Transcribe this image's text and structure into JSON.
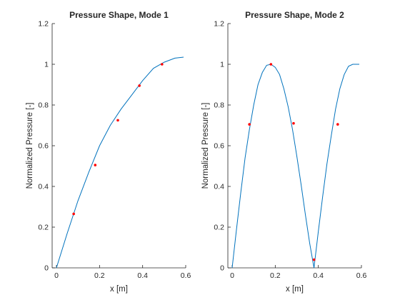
{
  "chart_data": [
    {
      "type": "line",
      "title": "Pressure Shape, Mode 1",
      "xlabel": "x [m]",
      "ylabel": "Normalized Pressure [-]",
      "xlim": [
        -0.02,
        0.6
      ],
      "ylim": [
        0,
        1.2
      ],
      "xticks": [
        "0",
        "0.2",
        "0.4",
        "0.6"
      ],
      "xtick_values": [
        0,
        0.2,
        0.4,
        0.6
      ],
      "yticks": [
        "0",
        "0.2",
        "0.4",
        "0.6",
        "0.8",
        "1",
        "1.2"
      ],
      "ytick_values": [
        0,
        0.2,
        0.4,
        0.6,
        0.8,
        1,
        1.2
      ],
      "grid": false,
      "series": [
        {
          "style": "line",
          "color": "#0072bd",
          "x": [
            0,
            0.05,
            0.1,
            0.15,
            0.2,
            0.25,
            0.3,
            0.35,
            0.4,
            0.45,
            0.5,
            0.55,
            0.59
          ],
          "y": [
            0,
            0.17,
            0.33,
            0.47,
            0.6,
            0.7,
            0.78,
            0.85,
            0.92,
            0.98,
            1.01,
            1.03,
            1.035
          ]
        },
        {
          "style": "markers",
          "color": "#ff0000",
          "x": [
            0.08,
            0.18,
            0.285,
            0.385,
            0.49
          ],
          "y": [
            0.265,
            0.505,
            0.725,
            0.895,
            1.0
          ]
        }
      ]
    },
    {
      "type": "line",
      "title": "Pressure Shape, Mode 2",
      "xlabel": "x [m]",
      "ylabel": "Normalized Pressure [-]",
      "xlim": [
        -0.02,
        0.6
      ],
      "ylim": [
        0,
        1.2
      ],
      "xticks": [
        "0",
        "0.2",
        "0.4",
        "0.6"
      ],
      "xtick_values": [
        0,
        0.2,
        0.4,
        0.6
      ],
      "yticks": [
        "0",
        "0.2",
        "0.4",
        "0.6",
        "0.8",
        "1",
        "1.2"
      ],
      "ytick_values": [
        0,
        0.2,
        0.4,
        0.6,
        0.8,
        1,
        1.2
      ],
      "grid": false,
      "series": [
        {
          "style": "line",
          "color": "#0072bd",
          "x": [
            0,
            0.02,
            0.04,
            0.06,
            0.08,
            0.1,
            0.12,
            0.14,
            0.16,
            0.18,
            0.2,
            0.22,
            0.24,
            0.26,
            0.28,
            0.3,
            0.32,
            0.34,
            0.36,
            0.38,
            0.4,
            0.42,
            0.44,
            0.46,
            0.48,
            0.5,
            0.52,
            0.54,
            0.56,
            0.58,
            0.59
          ],
          "y": [
            0,
            0.19,
            0.37,
            0.54,
            0.68,
            0.8,
            0.9,
            0.96,
            0.995,
            1.0,
            0.985,
            0.95,
            0.88,
            0.79,
            0.68,
            0.55,
            0.41,
            0.26,
            0.12,
            0.0,
            0.18,
            0.35,
            0.51,
            0.65,
            0.78,
            0.88,
            0.95,
            0.99,
            1.0,
            1.0,
            1.0
          ]
        },
        {
          "style": "markers",
          "color": "#ff0000",
          "x": [
            0.08,
            0.18,
            0.285,
            0.38,
            0.49
          ],
          "y": [
            0.705,
            1.0,
            0.71,
            0.04,
            0.705
          ]
        }
      ]
    }
  ]
}
